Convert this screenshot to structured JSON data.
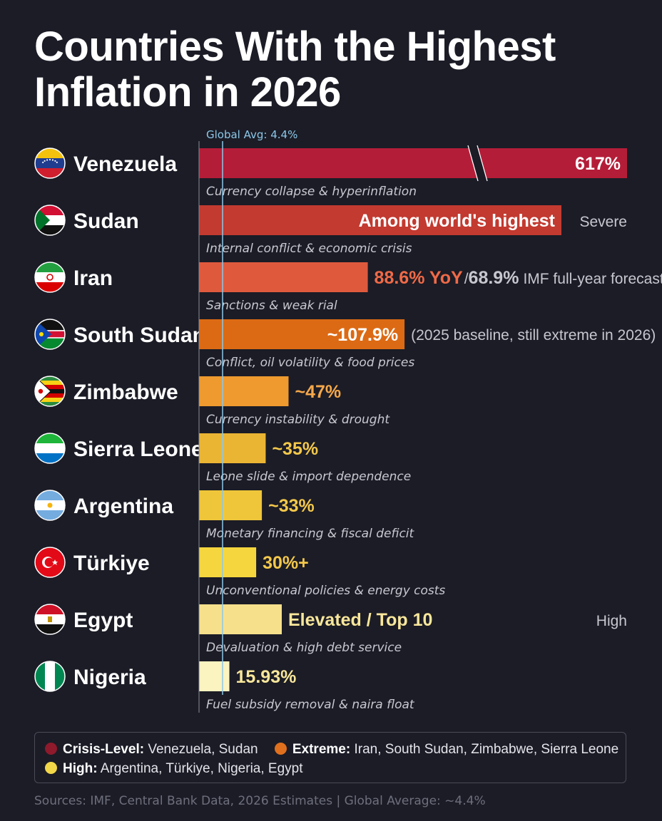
{
  "title_lines": [
    "Countries With the Highest",
    "Inflation in 2026"
  ],
  "global_avg_label": "Global Avg: 4.4%",
  "chart_data": {
    "type": "bar",
    "orientation": "horizontal",
    "title": "Countries With the Highest Inflation in 2026",
    "global_average": 4.4,
    "axis_break": true,
    "rows": [
      {
        "country": "Venezuela",
        "value": 617,
        "label": "617%",
        "note": "",
        "caption": "Currency collapse & hyperinflation",
        "color": "#b41d38",
        "category": "Crisis-Level",
        "flag": "venezuela"
      },
      {
        "country": "Sudan",
        "value": null,
        "label": "Among world's highest",
        "note": "Severe",
        "caption": "Internal conflict & economic crisis",
        "color": "#c23a30",
        "category": "Crisis-Level",
        "flag": "sudan"
      },
      {
        "country": "Iran",
        "value": 88.6,
        "label": "88.6% YoY",
        "note_sep": " / ",
        "secondary_value": "68.9%",
        "note": "IMF full-year forecast",
        "caption": "Sanctions & weak rial",
        "color": "#df5a3d",
        "category": "Extreme",
        "flag": "iran"
      },
      {
        "country": "South Sudan",
        "value": 107.9,
        "label": "~107.9%",
        "note": "(2025 baseline, still extreme in 2026)",
        "caption": "Conflict, oil volatility & food prices",
        "color": "#dc6a14",
        "category": "Extreme",
        "flag": "south-sudan"
      },
      {
        "country": "Zimbabwe",
        "value": 47,
        "label": "~47%",
        "note": "",
        "caption": "Currency instability & drought",
        "color": "#ee9a2f",
        "category": "Extreme",
        "flag": "zimbabwe"
      },
      {
        "country": "Sierra Leone",
        "value": 35,
        "label": "~35%",
        "note": "",
        "caption": "Leone slide & import dependence",
        "color": "#ebb534",
        "category": "Extreme",
        "flag": "sierra-leone"
      },
      {
        "country": "Argentina",
        "value": 33,
        "label": "~33%",
        "note": "",
        "caption": "Monetary financing & fiscal deficit",
        "color": "#efc63a",
        "category": "High",
        "flag": "argentina"
      },
      {
        "country": "Türkiye",
        "value": 30,
        "label": "30%+",
        "note": "",
        "caption": "Unconventional policies & energy costs",
        "color": "#f5d63e",
        "category": "High",
        "flag": "turkiye"
      },
      {
        "country": "Egypt",
        "value": null,
        "label": "Elevated / Top 10",
        "note": "High",
        "caption": "Devaluation & high debt service",
        "color": "#f7e08c",
        "category": "High",
        "flag": "egypt"
      },
      {
        "country": "Nigeria",
        "value": 15.93,
        "label": "15.93%",
        "note": "",
        "caption": "Fuel subsidy removal & naira float",
        "color": "#fbf3c0",
        "category": "High",
        "flag": "nigeria"
      }
    ]
  },
  "legend": [
    {
      "category": "Crisis-Level:",
      "countries": "Venezuela, Sudan",
      "color": "#8e1a2c"
    },
    {
      "category": "Extreme:",
      "countries": "Iran, South Sudan, Zimbabwe, Sierra Leone",
      "color": "#e0701d"
    },
    {
      "category": "High:",
      "countries": "Argentina, Türkiye, Nigeria, Egypt",
      "color": "#f2d748"
    }
  ],
  "source": "Sources: IMF, Central Bank Data, 2026 Estimates | Global Average: ~4.4%"
}
